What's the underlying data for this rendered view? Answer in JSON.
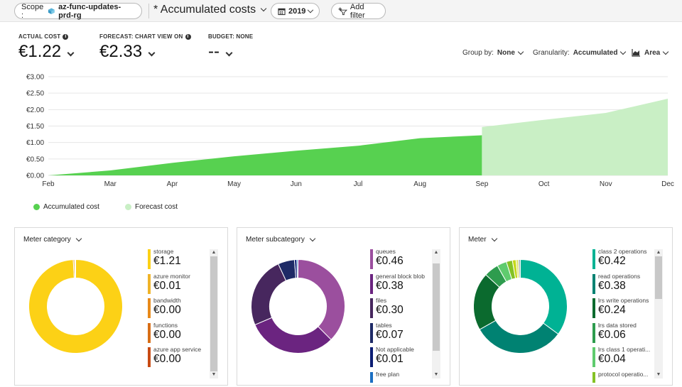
{
  "toolbar": {
    "scope_label": "Scope :",
    "scope_value": "az-func-updates-prd-rg",
    "view_title": "* Accumulated costs",
    "year": "2019",
    "add_filter": "Add filter"
  },
  "kpis": {
    "actual": {
      "label": "ACTUAL COST",
      "value": "€1.22"
    },
    "forecast": {
      "label": "FORECAST: CHART VIEW ON",
      "value": "€2.33"
    },
    "budget": {
      "label": "BUDGET: NONE",
      "value": "--"
    }
  },
  "controls": {
    "group_by_label": "Group by:",
    "group_by_value": "None",
    "granularity_label": "Granularity:",
    "granularity_value": "Accumulated",
    "chart_type": "Area"
  },
  "chart_data": {
    "type": "area",
    "x": [
      "Feb",
      "Mar",
      "Apr",
      "May",
      "Jun",
      "Jul",
      "Aug",
      "Sep",
      "Oct",
      "Nov",
      "Dec"
    ],
    "y_ticks": [
      "€0.00",
      "€0.50",
      "€1.00",
      "€1.50",
      "€2.00",
      "€2.50",
      "€3.00"
    ],
    "ylim": [
      0,
      3
    ],
    "series": [
      {
        "name": "Accumulated cost",
        "color": "#57d150",
        "points": [
          [
            0,
            0.0
          ],
          [
            1,
            0.15
          ],
          [
            2,
            0.38
          ],
          [
            3,
            0.58
          ],
          [
            4,
            0.75
          ],
          [
            5,
            0.9
          ],
          [
            6,
            1.13
          ],
          [
            7,
            1.22
          ]
        ]
      },
      {
        "name": "Forecast cost",
        "color": "#c9efc5",
        "points": [
          [
            7,
            1.47
          ],
          [
            8,
            1.69
          ],
          [
            9,
            1.9
          ],
          [
            10,
            2.33
          ]
        ]
      }
    ],
    "grid": true
  },
  "breakdowns": [
    {
      "title": "Meter category",
      "slices": [
        {
          "value": 1.21,
          "color": "#fcd116"
        },
        {
          "value": 0.006,
          "color": "#e8a113"
        },
        {
          "value": 0.002,
          "color": "#e0801a"
        },
        {
          "value": 0.002,
          "color": "#d04f12"
        }
      ],
      "items": [
        {
          "name": "storage",
          "value": "€1.21",
          "color": "#fcd116"
        },
        {
          "name": "azure monitor",
          "value": "€0.01",
          "color": "#f0b429"
        },
        {
          "name": "bandwidth",
          "value": "€0.00",
          "color": "#e88a1a"
        },
        {
          "name": "functions",
          "value": "€0.00",
          "color": "#d86e17"
        },
        {
          "name": "azure app service",
          "value": "€0.00",
          "color": "#c84b14"
        }
      ],
      "scroll_thumb": [
        0,
        1
      ]
    },
    {
      "title": "Meter subcategory",
      "slices": [
        {
          "value": 0.46,
          "color": "#9b4f9e"
        },
        {
          "value": 0.38,
          "color": "#6b2480"
        },
        {
          "value": 0.3,
          "color": "#47275e"
        },
        {
          "value": 0.07,
          "color": "#1e2a66"
        },
        {
          "value": 0.01,
          "color": "#0c1d74"
        },
        {
          "value": 0.005,
          "color": "#1b6fc2"
        }
      ],
      "items": [
        {
          "name": "queues",
          "value": "€0.46",
          "color": "#9b4f9e"
        },
        {
          "name": "general block blob",
          "value": "€0.38",
          "color": "#6b2480"
        },
        {
          "name": "files",
          "value": "€0.30",
          "color": "#47275e"
        },
        {
          "name": "tables",
          "value": "€0.07",
          "color": "#1e2a66"
        },
        {
          "name": "Not applicable",
          "value": "€0.01",
          "color": "#0c1d74"
        },
        {
          "name": "free plan",
          "value": "",
          "color": "#1b6fc2"
        }
      ],
      "scroll_thumb": [
        0.06,
        0.82
      ]
    },
    {
      "title": "Meter",
      "slices": [
        {
          "value": 0.42,
          "color": "#00b294"
        },
        {
          "value": 0.38,
          "color": "#008272"
        },
        {
          "value": 0.24,
          "color": "#0b6a2e"
        },
        {
          "value": 0.06,
          "color": "#2e9c4e"
        },
        {
          "value": 0.04,
          "color": "#5fcb6e"
        },
        {
          "value": 0.025,
          "color": "#84c225"
        },
        {
          "value": 0.015,
          "color": "#c5d81a"
        },
        {
          "value": 0.01,
          "color": "#dfe36a"
        },
        {
          "value": 0.008,
          "color": "#a7b3b8"
        }
      ],
      "items": [
        {
          "name": "class 2 operations",
          "value": "€0.42",
          "color": "#00b294"
        },
        {
          "name": "read operations",
          "value": "€0.38",
          "color": "#008272"
        },
        {
          "name": "lrs write operations",
          "value": "€0.24",
          "color": "#0b6a2e"
        },
        {
          "name": "lrs data stored",
          "value": "€0.06",
          "color": "#2e9c4e"
        },
        {
          "name": "lrs class 1 operati...",
          "value": "€0.04",
          "color": "#5fcb6e"
        },
        {
          "name": "protocol operatio...",
          "value": "",
          "color": "#84c225"
        }
      ],
      "scroll_thumb": [
        0.0,
        0.37
      ]
    }
  ]
}
